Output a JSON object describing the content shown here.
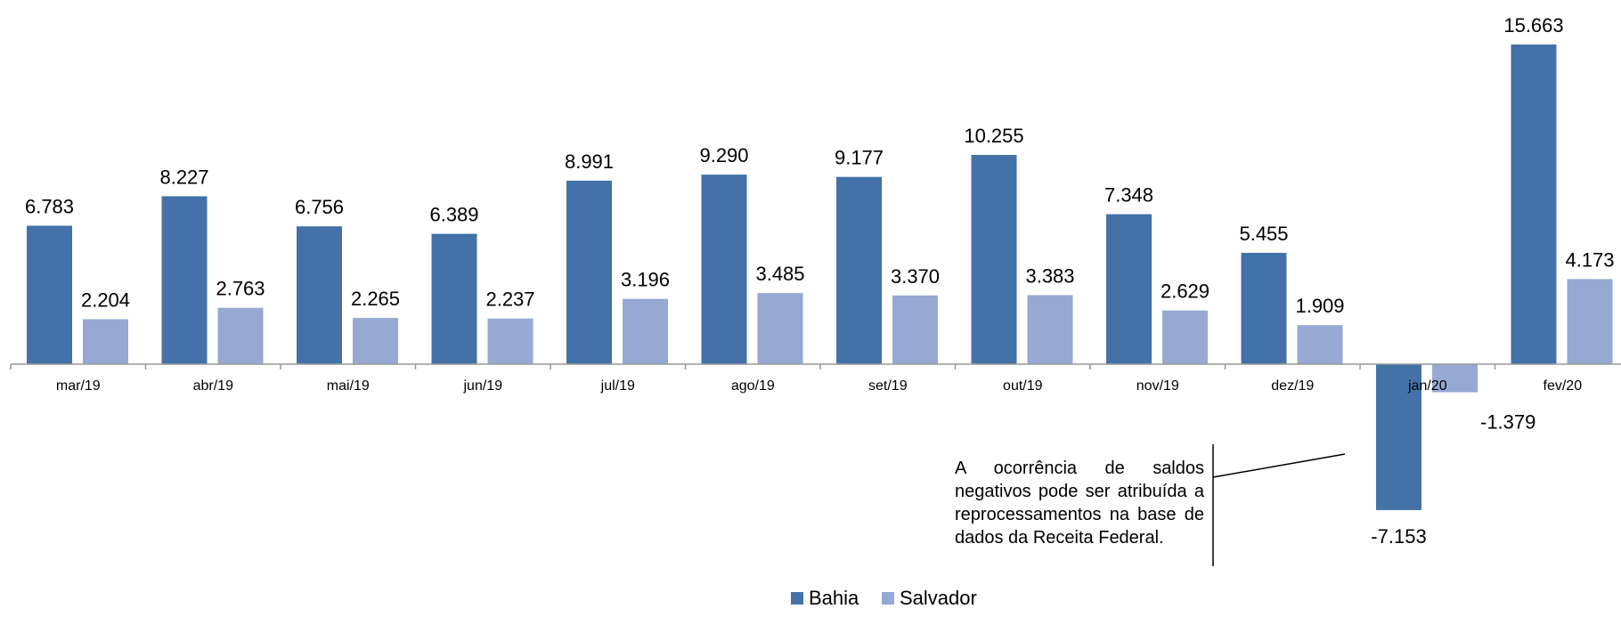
{
  "chart_data": {
    "type": "bar",
    "categories": [
      "mar/19",
      "abr/19",
      "mai/19",
      "jun/19",
      "jul/19",
      "ago/19",
      "set/19",
      "out/19",
      "nov/19",
      "dez/19",
      "jan/20",
      "fev/20"
    ],
    "series": [
      {
        "name": "Bahia",
        "color": "#4472a8",
        "values": [
          6783,
          8227,
          6756,
          6389,
          8991,
          9290,
          9177,
          10255,
          7348,
          5455,
          -7153,
          15663
        ],
        "labels": [
          "6.783",
          "8.227",
          "6.756",
          "6.389",
          "8.991",
          "9.290",
          "9.177",
          "10.255",
          "7.348",
          "5.455",
          "-7.153",
          "15.663"
        ]
      },
      {
        "name": "Salvador",
        "color": "#95a9d3",
        "values": [
          2204,
          2763,
          2265,
          2237,
          3196,
          3485,
          3370,
          3383,
          2629,
          1909,
          -1379,
          4173
        ],
        "labels": [
          "2.204",
          "2.763",
          "2.265",
          "2.237",
          "3.196",
          "3.485",
          "3.370",
          "3.383",
          "2.629",
          "1.909",
          "-1.379",
          "4.173"
        ]
      }
    ],
    "title": "",
    "xlabel": "",
    "ylabel": "",
    "ylim": [
      -7153,
      15663
    ],
    "grid": false,
    "legend_position": "bottom",
    "axis_color": "#999999",
    "annotation": {
      "text": "A ocorrência de saldos negativos pode ser atribuída a reprocessamentos na base de dados da Receita Federal.",
      "line_color": "#000000"
    }
  }
}
